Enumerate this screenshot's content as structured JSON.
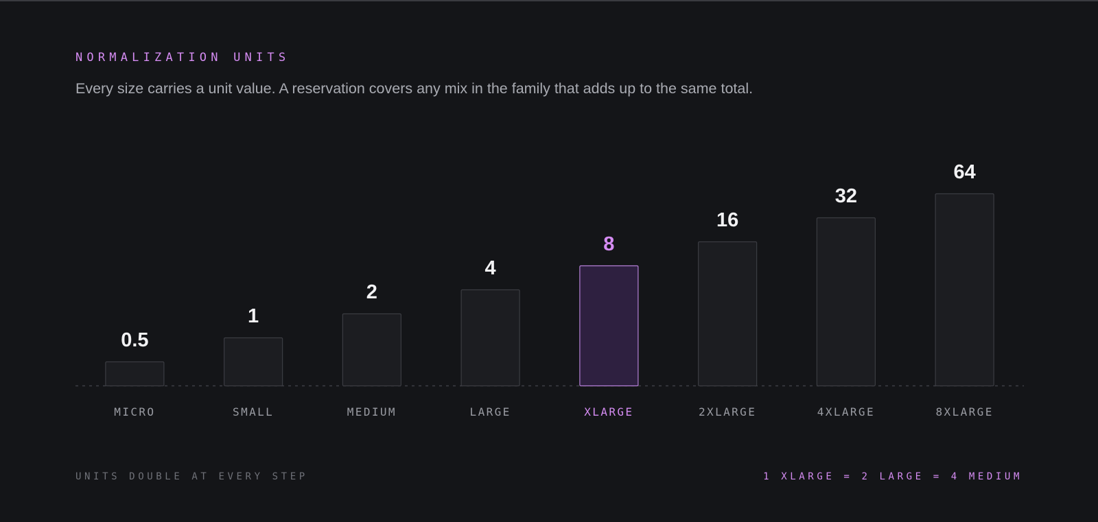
{
  "header": {
    "eyebrow": "NORMALIZATION UNITS",
    "subtitle": "Every size carries a unit value. A reservation covers any mix in the family that adds up to the same total."
  },
  "footer": {
    "left_note": "UNITS DOUBLE AT EVERY STEP",
    "right_note": "1 XLARGE = 2 LARGE = 4 MEDIUM"
  },
  "colors": {
    "background": "#141518",
    "bar_fill": "#1c1d21",
    "bar_stroke": "#3b3c42",
    "highlight_fill": "#2e2040",
    "highlight_stroke": "#b57fd6",
    "accent": "#d58cf2",
    "value_text": "#f2f2f4",
    "category_text": "#9a9ca3",
    "baseline": "#3e3f45"
  },
  "chart_data": {
    "type": "bar",
    "scale": "log2",
    "categories": [
      "MICRO",
      "SMALL",
      "MEDIUM",
      "LARGE",
      "XLARGE",
      "2XLARGE",
      "4XLARGE",
      "8XLARGE"
    ],
    "values": [
      0.5,
      1,
      2,
      4,
      8,
      16,
      32,
      64
    ],
    "value_labels": [
      "0.5",
      "1",
      "2",
      "4",
      "8",
      "16",
      "32",
      "64"
    ],
    "highlight": "XLARGE",
    "ylim": [
      0.25,
      64
    ],
    "grid": false,
    "baseline_style": "dashed"
  }
}
